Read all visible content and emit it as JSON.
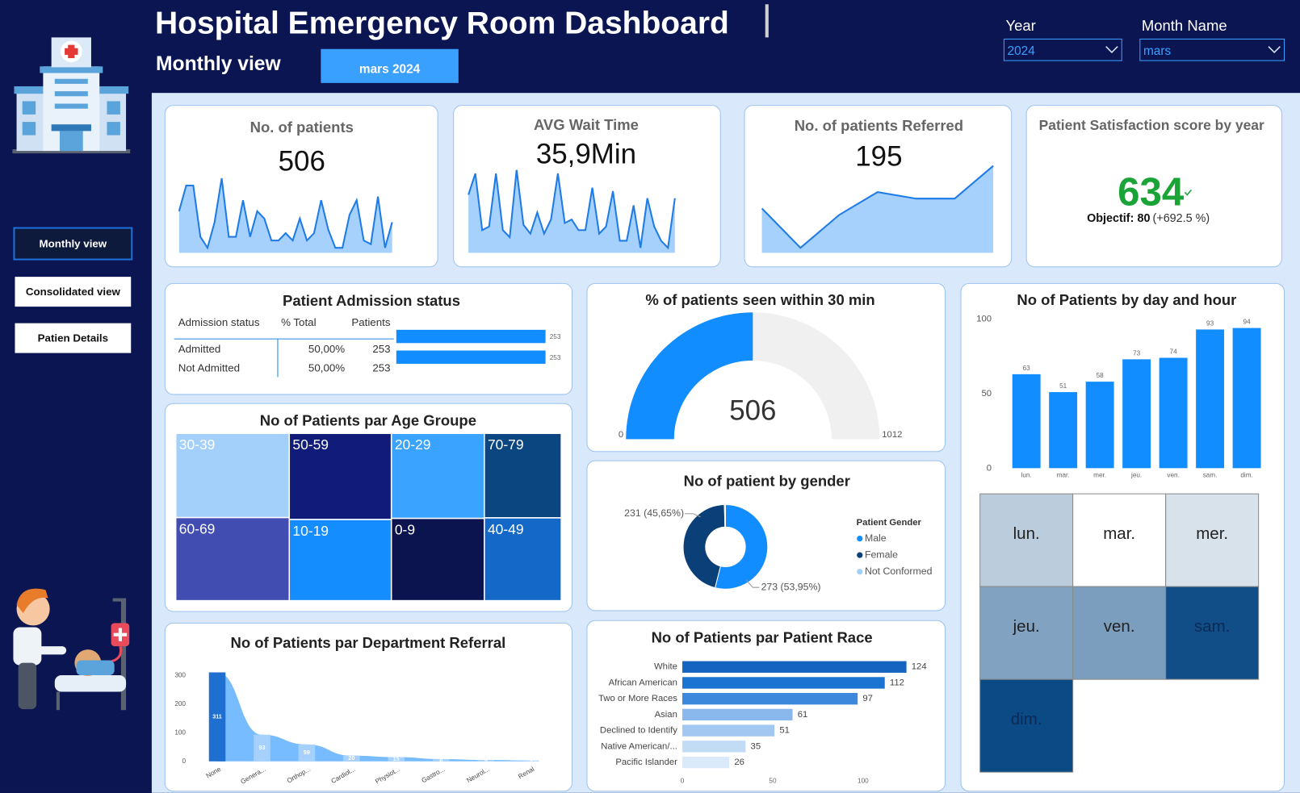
{
  "header": {
    "title": "Hospital Emergency Room Dashboard",
    "subtitle": "Monthly view",
    "period": "mars 2024",
    "filters": [
      {
        "label": "Year",
        "value": "2024"
      },
      {
        "label": "Month Name",
        "value": "mars"
      }
    ]
  },
  "nav": [
    "Monthly view",
    "Consolidated view",
    "Patien Details"
  ],
  "kpis": [
    {
      "title": "No. of patients",
      "value": 506,
      "sparkline": [
        14,
        21,
        21,
        7,
        4,
        11,
        23,
        7,
        7,
        17,
        7,
        14,
        12,
        6,
        6,
        8,
        6,
        12,
        6,
        8,
        17,
        9,
        4,
        4,
        13,
        17,
        6,
        5,
        18,
        4,
        11
      ]
    },
    {
      "title": "AVG  Wait Time",
      "value": 35.9,
      "value_label": "35,9Min",
      "sparkline": [
        52,
        64,
        32,
        34,
        64,
        32,
        28,
        66,
        35,
        30,
        42,
        30,
        38,
        64,
        36,
        38,
        32,
        32,
        56,
        30,
        34,
        54,
        26,
        26,
        46,
        22,
        50,
        34,
        26,
        22,
        50
      ]
    },
    {
      "title": "No. of patients Referred",
      "value": 195,
      "sparkline": [
        20,
        8,
        18,
        25,
        23,
        23,
        33
      ]
    }
  ],
  "satisfaction": {
    "title": "Patient Satisfaction score by year",
    "value": 634,
    "objective_label": "Objectif:",
    "objective": 80,
    "delta_label": "(+692.5 %)",
    "color": "#1aa336"
  },
  "admission": {
    "title": "Patient Admission status",
    "columns": [
      "Admission status",
      "% Total",
      "Patients"
    ],
    "rows": [
      [
        "Admitted",
        "50,00%",
        253
      ],
      [
        "Not Admitted",
        "50,00%",
        253
      ]
    ],
    "bar_color": "#118dff"
  },
  "age": {
    "title": "No of Patients par Age Groupe",
    "groups": [
      {
        "label": "30-39",
        "value": 75,
        "color": "#a3cffb"
      },
      {
        "label": "60-69",
        "value": 74,
        "color": "#414db0"
      },
      {
        "label": "50-59",
        "value": 69,
        "color": "#111b7a"
      },
      {
        "label": "10-19",
        "value": 65,
        "color": "#138dff"
      },
      {
        "label": "20-29",
        "value": 62,
        "color": "#3aa2ff"
      },
      {
        "label": "0-9",
        "value": 60,
        "color": "#0c1450"
      },
      {
        "label": "70-79",
        "value": 51,
        "color": "#0b4680"
      },
      {
        "label": "40-49",
        "value": 50,
        "color": "#1469c8"
      }
    ]
  },
  "gauge": {
    "title": "% of patients seen within 30 min",
    "value": 506,
    "min": 0,
    "max": 1012,
    "color": "#118dff",
    "track_color": "#f0f0f0"
  },
  "gender": {
    "title": "No of patient by gender",
    "legend_title": "Patient Gender",
    "series": [
      {
        "name": "Male",
        "value": 273,
        "value_label": "273 (53,95%)",
        "color": "#118dff"
      },
      {
        "name": "Female",
        "value": 231,
        "value_label": "231 (45,65%)",
        "color": "#0b3f78"
      },
      {
        "name": "Not Conformed",
        "value": 2,
        "color": "#a3cffb"
      }
    ]
  },
  "race": {
    "title": "No of Patients par Patient Race",
    "categories": [
      "White",
      "African American",
      "Two or More Races",
      "Asian",
      "Declined to Identify",
      "Native American/...",
      "Pacific Islander"
    ],
    "values": [
      124,
      112,
      97,
      61,
      51,
      35,
      26
    ],
    "colors": [
      "#1565c0",
      "#1b74d2",
      "#3b88dc",
      "#8ab8ec",
      "#a2c8f1",
      "#c3dcf6",
      "#dbeafb"
    ],
    "xlim": [
      0,
      125
    ],
    "xticks": [
      0,
      50,
      100
    ]
  },
  "department": {
    "title": "No of Patients par Department Referral",
    "categories": [
      "None",
      "Genera...",
      "Orthop...",
      "Cardiol...",
      "Physiot...",
      "Gastro...",
      "Neurol...",
      "Renal"
    ],
    "values": [
      311,
      93,
      59,
      20,
      15,
      8,
      5,
      3
    ],
    "colors": [
      "#1f6fd1",
      "#a6d1fc",
      "#a6d1fc",
      "#a6d1fc",
      "#a6d1fc",
      "#a6d1fc",
      "#a6d1fc",
      "#a6d1fc"
    ],
    "area_color": "#5fb0ff",
    "ylim": [
      0,
      330
    ],
    "yticks": [
      0,
      100,
      200,
      300
    ]
  },
  "day": {
    "title": "No of Patients by day and hour",
    "categories": [
      "lun.",
      "mar.",
      "mer.",
      "jeu.",
      "ven.",
      "sam.",
      "dim."
    ],
    "values": [
      63,
      51,
      58,
      73,
      74,
      93,
      94
    ],
    "color": "#118dff",
    "ylim": [
      0,
      100
    ],
    "yticks": [
      0,
      50,
      100
    ],
    "heat_low": "#ffffff",
    "heat_high": "#0b4a85"
  }
}
